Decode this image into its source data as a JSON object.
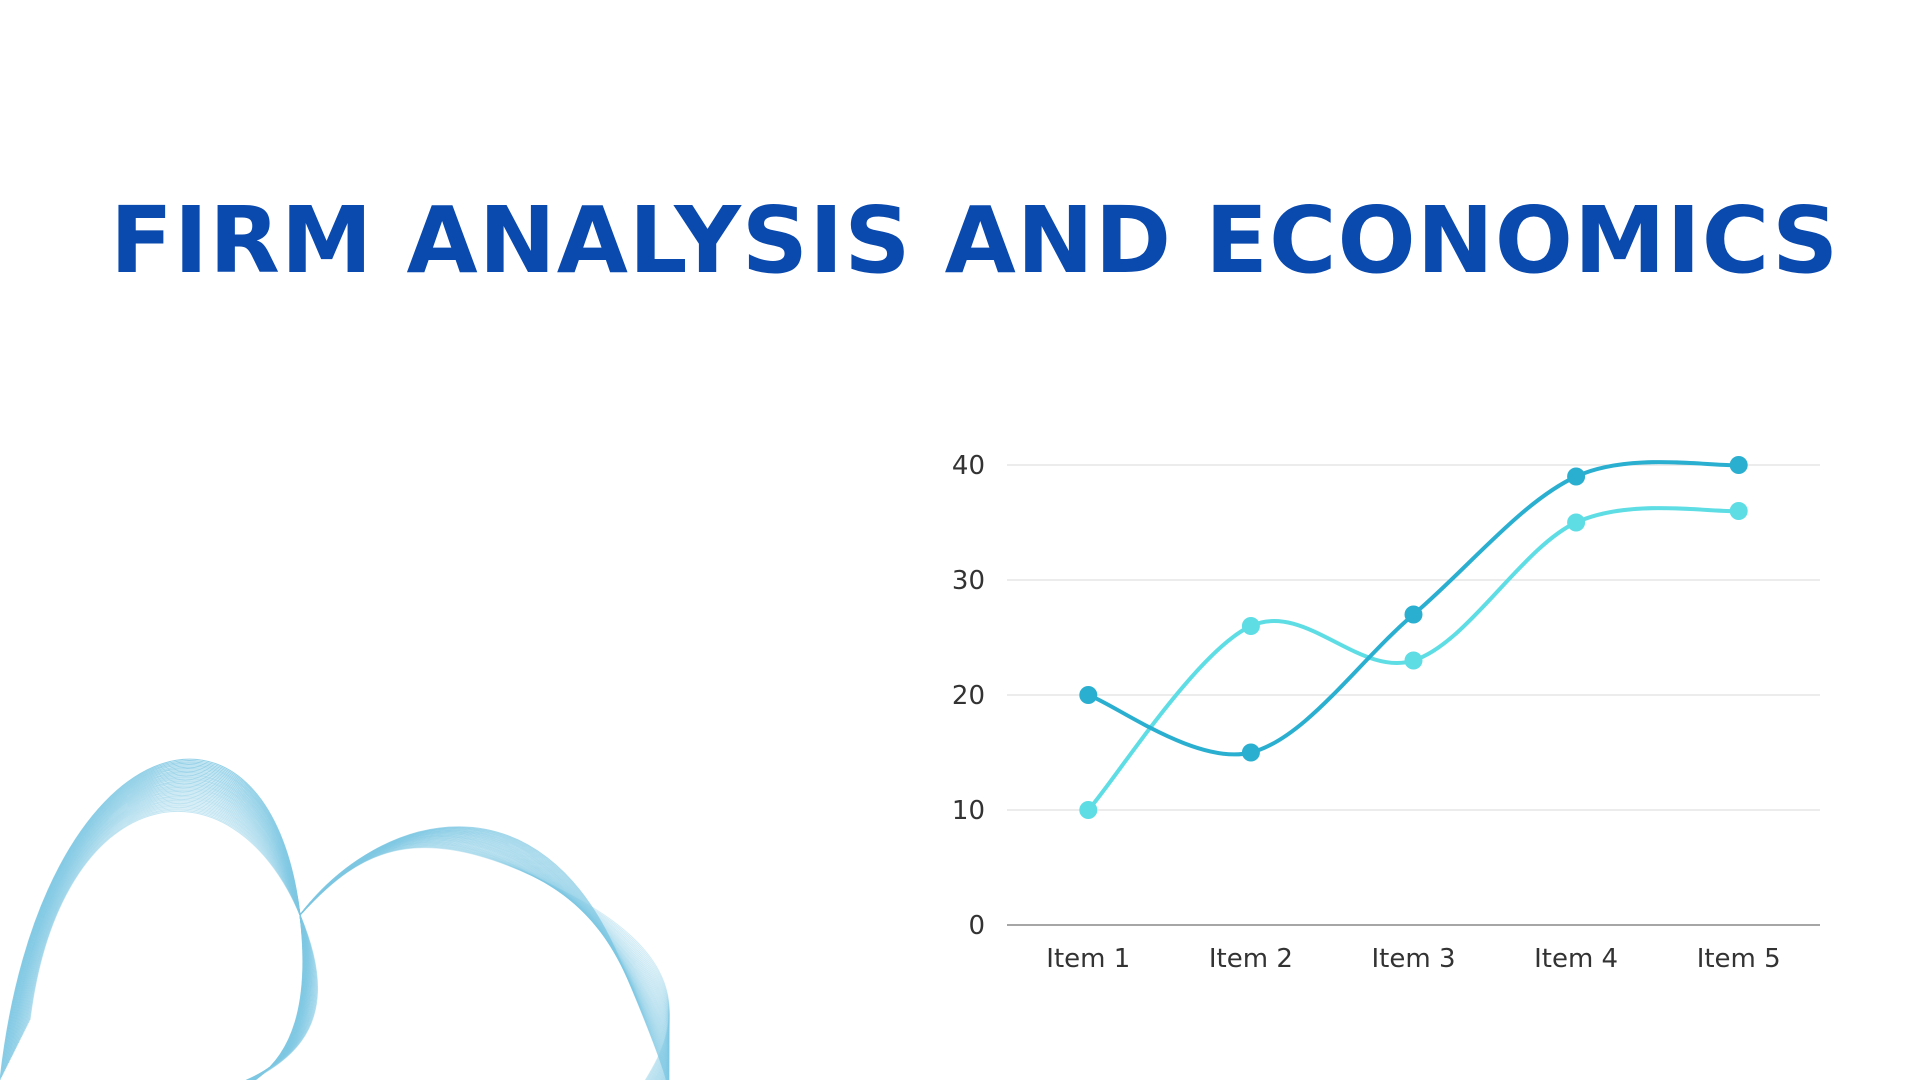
{
  "title": "FIRM ANALYSIS AND ECONOMICS",
  "colors": {
    "title": "#0a49ad",
    "series_dark": "#2bafd0",
    "series_light": "#5edde5",
    "grid": "#d9d9d9",
    "axis": "#888888",
    "wave": "#7fc8e3"
  },
  "chart_data": {
    "type": "line",
    "smooth": true,
    "categories": [
      "Item 1",
      "Item 2",
      "Item 3",
      "Item 4",
      "Item 5"
    ],
    "series": [
      {
        "color": "#2bafd0",
        "values": [
          20,
          15,
          27,
          39,
          40
        ]
      },
      {
        "color": "#5edde5",
        "values": [
          10,
          26,
          23,
          35,
          36
        ]
      }
    ],
    "ylim": [
      0,
      40
    ],
    "yticks": [
      0,
      10,
      20,
      30,
      40
    ],
    "grid": true,
    "legend": false,
    "markers": true
  }
}
